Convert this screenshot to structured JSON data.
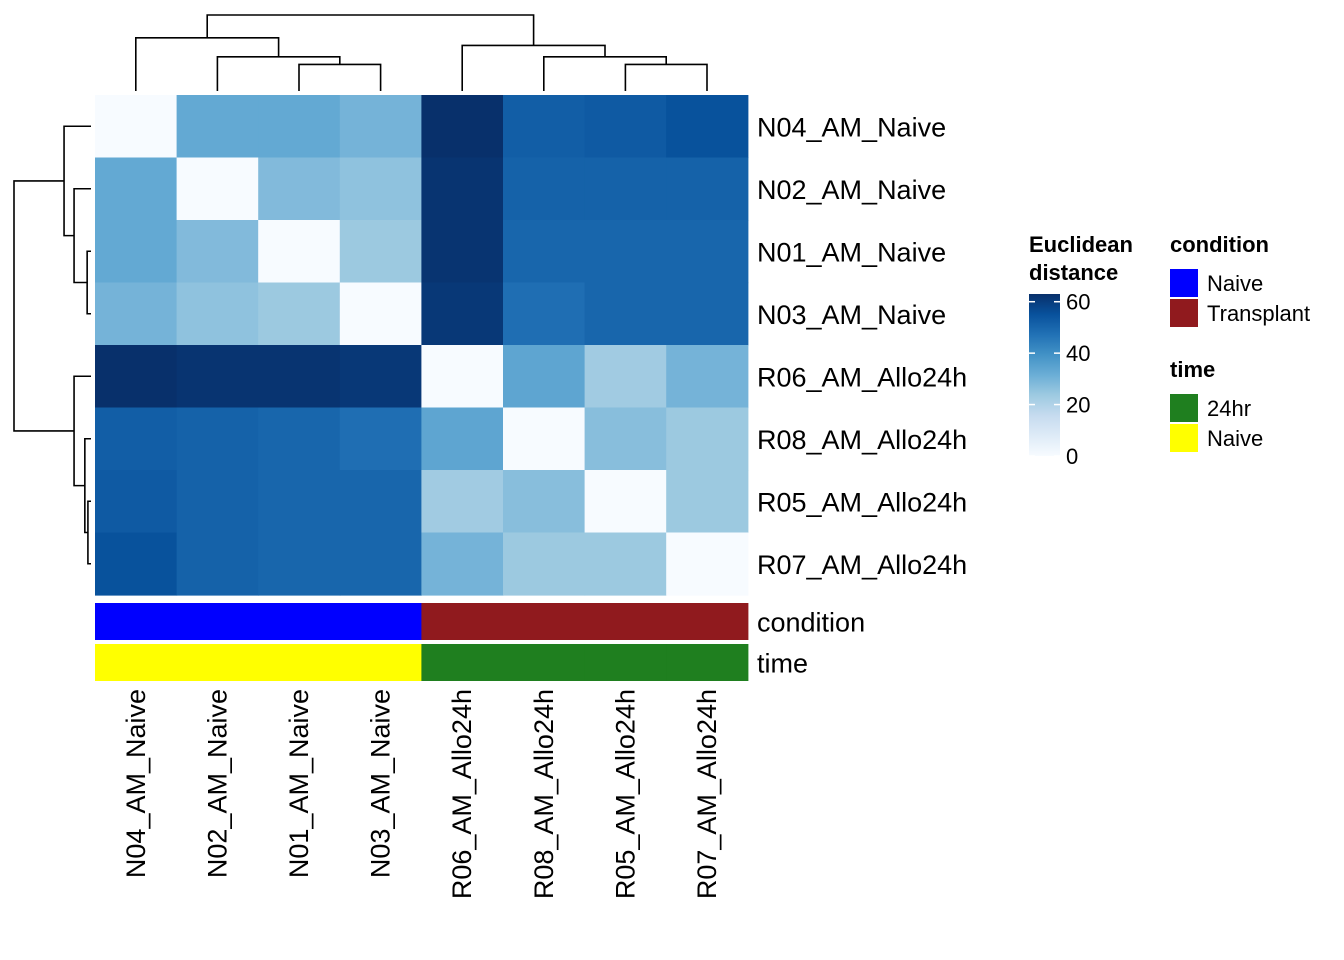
{
  "chart_data": {
    "type": "heatmap",
    "rows": [
      "N04_AM_Naive",
      "N02_AM_Naive",
      "N01_AM_Naive",
      "N03_AM_Naive",
      "R06_AM_Allo24h",
      "R08_AM_Allo24h",
      "R05_AM_Allo24h",
      "R07_AM_Allo24h"
    ],
    "columns": [
      "N04_AM_Naive",
      "N02_AM_Naive",
      "N01_AM_Naive",
      "N03_AM_Naive",
      "R06_AM_Allo24h",
      "R08_AM_Allo24h",
      "R05_AM_Allo24h",
      "R07_AM_Allo24h"
    ],
    "values": [
      [
        0,
        33,
        33,
        30,
        63,
        52,
        53,
        55
      ],
      [
        33,
        0,
        28,
        26,
        62,
        51,
        51,
        51
      ],
      [
        33,
        28,
        0,
        24,
        62,
        50,
        50,
        50
      ],
      [
        30,
        26,
        24,
        0,
        61,
        48,
        50,
        50
      ],
      [
        63,
        62,
        62,
        61,
        0,
        34,
        23,
        30
      ],
      [
        52,
        51,
        50,
        48,
        34,
        0,
        27,
        24
      ],
      [
        53,
        51,
        50,
        50,
        23,
        27,
        0,
        24
      ],
      [
        55,
        51,
        50,
        50,
        30,
        24,
        24,
        0
      ]
    ],
    "color_scale": {
      "title": [
        "Euclidean",
        "distance"
      ],
      "range": [
        0,
        63
      ],
      "ticks": [
        0,
        20,
        40,
        60
      ],
      "colors": [
        "#f7fbff",
        "#deebf7",
        "#c6dbef",
        "#9ecae1",
        "#6baed6",
        "#4292c6",
        "#2171b5",
        "#08519c",
        "#08306b"
      ]
    },
    "annotations": [
      {
        "name": "condition",
        "values": [
          "Naive",
          "Naive",
          "Naive",
          "Naive",
          "Transplant",
          "Transplant",
          "Transplant",
          "Transplant"
        ],
        "legend": [
          {
            "label": "Naive",
            "color": "#0000ff"
          },
          {
            "label": "Transplant",
            "color": "#901a1e"
          }
        ]
      },
      {
        "name": "time",
        "values": [
          "Naive",
          "Naive",
          "Naive",
          "Naive",
          "24hr",
          "24hr",
          "24hr",
          "24hr"
        ],
        "legend": [
          {
            "label": "24hr",
            "color": "#1f7f1f"
          },
          {
            "label": "Naive",
            "color": "#ffff00"
          }
        ]
      }
    ],
    "column_dendrogram": [
      [
        2,
        3
      ],
      [
        1,
        "a"
      ],
      [
        0,
        "b"
      ],
      [
        6,
        7
      ],
      [
        5,
        "d"
      ],
      [
        4,
        "e"
      ],
      [
        "c",
        "f"
      ]
    ],
    "row_dendrogram": [
      [
        2,
        3
      ],
      [
        1,
        "a"
      ],
      [
        0,
        "b"
      ],
      [
        6,
        7
      ],
      [
        5,
        "d"
      ],
      [
        4,
        "e"
      ],
      [
        "c",
        "f"
      ]
    ]
  }
}
